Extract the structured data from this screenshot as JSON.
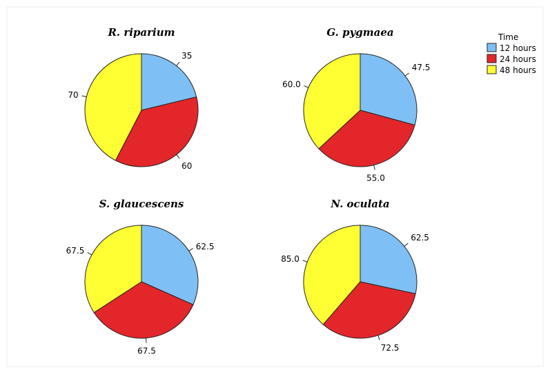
{
  "chart_data": {
    "type": "pie",
    "legend": {
      "title": "Time",
      "placement": "top-right",
      "entries": [
        "12 hours",
        "24 hours",
        "48 hours"
      ]
    },
    "colors": {
      "12 hours": "#7ec0f5",
      "24 hours": "#e3262a",
      "48 hours": "#ffff33"
    },
    "pies": [
      {
        "title": "R. riparium",
        "categories": [
          "12 hours",
          "24 hours",
          "48 hours"
        ],
        "values": [
          35,
          60,
          70
        ],
        "labels": [
          "35",
          "60",
          "70"
        ]
      },
      {
        "title": "G. pygmaea",
        "categories": [
          "12 hours",
          "24 hours",
          "48 hours"
        ],
        "values": [
          47.5,
          55.0,
          60.0
        ],
        "labels": [
          "47.5",
          "55.0",
          "60.0"
        ]
      },
      {
        "title": "S. glaucescens",
        "categories": [
          "12 hours",
          "24 hours",
          "48 hours"
        ],
        "values": [
          62.5,
          67.5,
          67.5
        ],
        "labels": [
          "62.5",
          "67.5",
          "67.5"
        ]
      },
      {
        "title": "N. oculata",
        "categories": [
          "12 hours",
          "24 hours",
          "48 hours"
        ],
        "values": [
          62.5,
          72.5,
          85.0
        ],
        "labels": [
          "62.5",
          "72.5",
          "85.0"
        ]
      }
    ]
  }
}
